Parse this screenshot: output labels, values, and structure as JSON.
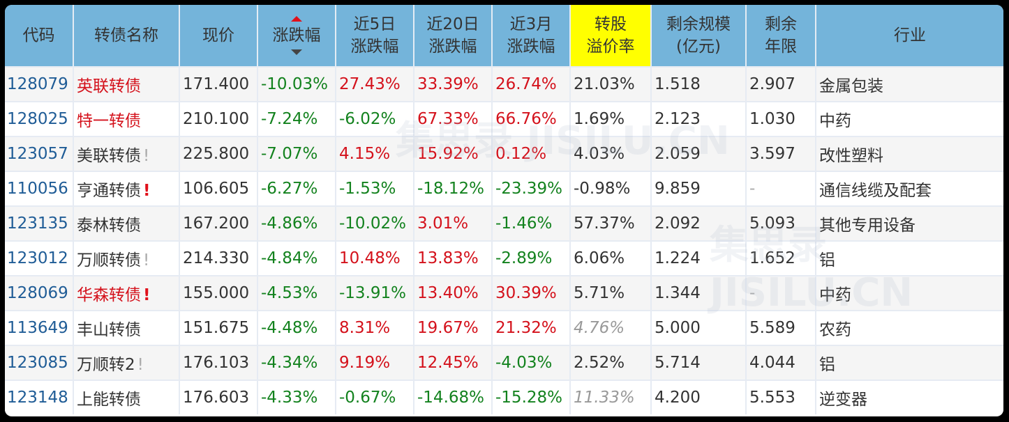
{
  "colors": {
    "header_bg": "#74b4da",
    "highlight_header_bg": "#ffff00",
    "up": "#d4111b",
    "down": "#13821e",
    "code": "#1f5c96",
    "row_odd": "#f5f5f5",
    "row_even": "#ffffff"
  },
  "columns": [
    {
      "key": "code",
      "label": "代码"
    },
    {
      "key": "name",
      "label": "转债名称"
    },
    {
      "key": "price",
      "label": "现价"
    },
    {
      "key": "change",
      "label": "涨跌幅",
      "sort": "desc-active"
    },
    {
      "key": "change_5d",
      "label_1": "近5日",
      "label_2": "涨跌幅"
    },
    {
      "key": "change_20d",
      "label_1": "近20日",
      "label_2": "涨跌幅"
    },
    {
      "key": "change_3m",
      "label_1": "近3月",
      "label_2": "涨跌幅"
    },
    {
      "key": "premium",
      "label_1": "转股",
      "label_2": "溢价率",
      "highlighted": true
    },
    {
      "key": "scale",
      "label_1": "剩余规模",
      "label_2": "(亿元)"
    },
    {
      "key": "years",
      "label_1": "剩余",
      "label_2": "年限"
    },
    {
      "key": "industry",
      "label": "行业"
    }
  ],
  "rows": [
    {
      "code": "128079",
      "name": "英联转债",
      "name_color": "red",
      "mark": "",
      "price": "171.400",
      "change": "-10.03%",
      "change_5d": "27.43%",
      "change_20d": "33.39%",
      "change_3m": "26.74%",
      "premium": "21.03%",
      "premium_style": "dark",
      "scale": "1.518",
      "years": "2.907",
      "industry": "金属包装"
    },
    {
      "code": "128025",
      "name": "特一转债",
      "name_color": "red",
      "mark": "",
      "price": "210.100",
      "change": "-7.24%",
      "change_5d": "-6.02%",
      "change_20d": "67.33%",
      "change_3m": "66.76%",
      "premium": "1.69%",
      "premium_style": "dark",
      "scale": "2.123",
      "years": "1.030",
      "industry": "中药"
    },
    {
      "code": "123057",
      "name": "美联转债",
      "name_color": "dark",
      "mark": "!",
      "mark_style": "gray",
      "price": "225.800",
      "change": "-7.07%",
      "change_5d": "4.15%",
      "change_20d": "15.92%",
      "change_3m": "0.12%",
      "premium": "4.03%",
      "premium_style": "dark",
      "scale": "2.059",
      "years": "3.597",
      "industry": "改性塑料"
    },
    {
      "code": "110056",
      "name": "亨通转债",
      "name_color": "dark",
      "mark": "!",
      "mark_style": "red",
      "price": "106.605",
      "change": "-6.27%",
      "change_5d": "-1.53%",
      "change_20d": "-18.12%",
      "change_3m": "-23.39%",
      "premium": "-0.98%",
      "premium_style": "dark",
      "scale": "9.859",
      "years": "-",
      "industry": "通信线缆及配套"
    },
    {
      "code": "123135",
      "name": "泰林转债",
      "name_color": "dark",
      "mark": "",
      "price": "167.200",
      "change": "-4.86%",
      "change_5d": "-10.02%",
      "change_20d": "3.01%",
      "change_3m": "-1.46%",
      "premium": "57.37%",
      "premium_style": "dark",
      "scale": "2.092",
      "years": "5.093",
      "industry": "其他专用设备"
    },
    {
      "code": "123012",
      "name": "万顺转债",
      "name_color": "dark",
      "mark": "!",
      "mark_style": "gray",
      "price": "214.330",
      "change": "-4.84%",
      "change_5d": "10.48%",
      "change_20d": "13.83%",
      "change_3m": "-2.89%",
      "premium": "6.06%",
      "premium_style": "dark",
      "scale": "1.224",
      "years": "1.652",
      "industry": "铝"
    },
    {
      "code": "128069",
      "name": "华森转债",
      "name_color": "red",
      "mark": "!",
      "mark_style": "red",
      "price": "155.000",
      "change": "-4.53%",
      "change_5d": "-13.91%",
      "change_20d": "13.40%",
      "change_3m": "30.39%",
      "premium": "5.71%",
      "premium_style": "dark",
      "scale": "1.344",
      "years": "-",
      "industry": "中药"
    },
    {
      "code": "113649",
      "name": "丰山转债",
      "name_color": "dark",
      "mark": "",
      "price": "151.675",
      "change": "-4.48%",
      "change_5d": "8.31%",
      "change_20d": "19.67%",
      "change_3m": "21.32%",
      "premium": "4.76%",
      "premium_style": "muted",
      "scale": "5.000",
      "years": "5.589",
      "industry": "农药"
    },
    {
      "code": "123085",
      "name": "万顺转2",
      "name_color": "dark",
      "mark": "!",
      "mark_style": "gray",
      "price": "176.103",
      "change": "-4.34%",
      "change_5d": "9.19%",
      "change_20d": "12.45%",
      "change_3m": "-4.03%",
      "premium": "2.52%",
      "premium_style": "dark",
      "scale": "5.714",
      "years": "4.044",
      "industry": "铝"
    },
    {
      "code": "123148",
      "name": "上能转债",
      "name_color": "dark",
      "mark": "",
      "price": "176.603",
      "change": "-4.33%",
      "change_5d": "-0.67%",
      "change_20d": "-14.68%",
      "change_3m": "-15.28%",
      "premium": "11.33%",
      "premium_style": "muted",
      "scale": "4.200",
      "years": "5.553",
      "industry": "逆变器"
    }
  ],
  "watermark": "集思录 JISILU.CN"
}
